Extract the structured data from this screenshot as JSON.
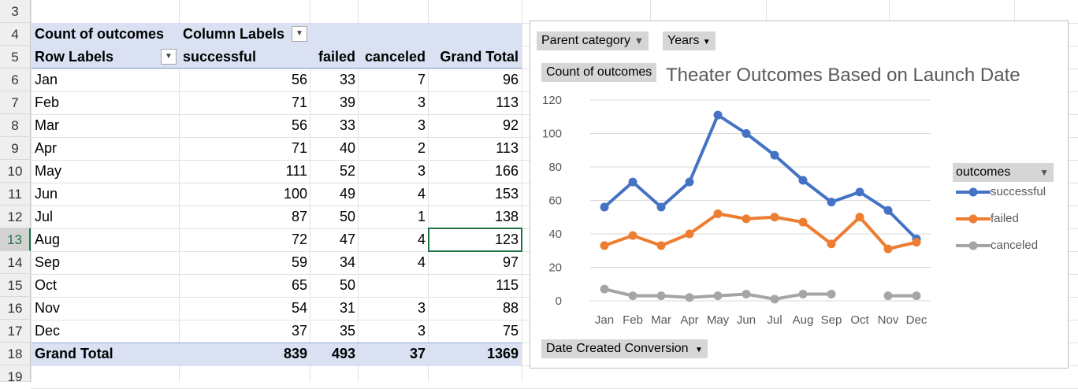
{
  "row_numbers": [
    "3",
    "4",
    "5",
    "6",
    "7",
    "8",
    "9",
    "10",
    "11",
    "12",
    "13",
    "14",
    "15",
    "16",
    "17",
    "18",
    "19"
  ],
  "pivot": {
    "header_count": "Count of outcomes",
    "header_column_labels": "Column Labels",
    "header_row_labels": "Row Labels",
    "columns": [
      "successful",
      "failed",
      "canceled",
      "Grand Total"
    ],
    "rows": [
      {
        "label": "Jan",
        "successful": "56",
        "failed": "33",
        "canceled": "7",
        "total": "96"
      },
      {
        "label": "Feb",
        "successful": "71",
        "failed": "39",
        "canceled": "3",
        "total": "113"
      },
      {
        "label": "Mar",
        "successful": "56",
        "failed": "33",
        "canceled": "3",
        "total": "92"
      },
      {
        "label": "Apr",
        "successful": "71",
        "failed": "40",
        "canceled": "2",
        "total": "113"
      },
      {
        "label": "May",
        "successful": "111",
        "failed": "52",
        "canceled": "3",
        "total": "166"
      },
      {
        "label": "Jun",
        "successful": "100",
        "failed": "49",
        "canceled": "4",
        "total": "153"
      },
      {
        "label": "Jul",
        "successful": "87",
        "failed": "50",
        "canceled": "1",
        "total": "138"
      },
      {
        "label": "Aug",
        "successful": "72",
        "failed": "47",
        "canceled": "4",
        "total": "123"
      },
      {
        "label": "Sep",
        "successful": "59",
        "failed": "34",
        "canceled": "4",
        "total": "97"
      },
      {
        "label": "Oct",
        "successful": "65",
        "failed": "50",
        "canceled": "",
        "total": "115"
      },
      {
        "label": "Nov",
        "successful": "54",
        "failed": "31",
        "canceled": "3",
        "total": "88"
      },
      {
        "label": "Dec",
        "successful": "37",
        "failed": "35",
        "canceled": "3",
        "total": "75"
      }
    ],
    "grand_total": {
      "label": "Grand Total",
      "successful": "839",
      "failed": "493",
      "canceled": "37",
      "total": "1369"
    }
  },
  "chart_buttons": {
    "parent_category": "Parent category",
    "years": "Years",
    "count_of_outcomes": "Count of outcomes",
    "date_created": "Date Created Conversion",
    "legend_title": "outcomes"
  },
  "chart_data": {
    "type": "line",
    "title": "Theater Outcomes Based on Launch Date",
    "categories": [
      "Jan",
      "Feb",
      "Mar",
      "Apr",
      "May",
      "Jun",
      "Jul",
      "Aug",
      "Sep",
      "Oct",
      "Nov",
      "Dec"
    ],
    "ylim": [
      0,
      120
    ],
    "yticks": [
      "0",
      "20",
      "40",
      "60",
      "80",
      "100",
      "120"
    ],
    "grid": true,
    "legend_position": "right",
    "series": [
      {
        "name": "successful",
        "color": "#4472c4",
        "values": [
          56,
          71,
          56,
          71,
          111,
          100,
          87,
          72,
          59,
          65,
          54,
          37
        ]
      },
      {
        "name": "failed",
        "color": "#ed7d31",
        "values": [
          33,
          39,
          33,
          40,
          52,
          49,
          50,
          47,
          34,
          50,
          31,
          35
        ]
      },
      {
        "name": "canceled",
        "color": "#a5a5a5",
        "values": [
          7,
          3,
          3,
          2,
          3,
          4,
          1,
          4,
          4,
          null,
          3,
          3
        ]
      }
    ]
  }
}
